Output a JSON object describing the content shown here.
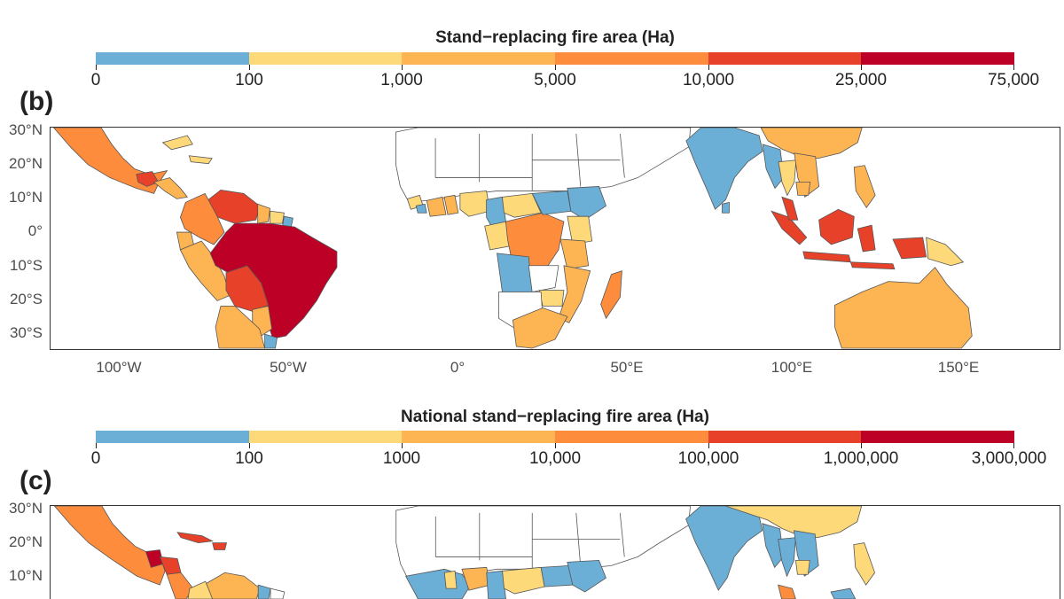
{
  "colors": [
    "#6baed6",
    "#fdd97a",
    "#fdb452",
    "#fd8d3c",
    "#e8412a",
    "#bd0026"
  ],
  "panel_b": {
    "label": "(b)",
    "legend_title": "Stand−replacing fire area (Ha)",
    "ticks": [
      "0",
      "100",
      "1,000",
      "5,000",
      "10,000",
      "25,000",
      "75,000"
    ],
    "lat_labels": [
      "30°N",
      "20°N",
      "10°N",
      "0°",
      "10°S",
      "20°S",
      "30°S"
    ],
    "lon_labels": [
      "100°W",
      "50°W",
      "0°",
      "50°E",
      "100°E",
      "150°E"
    ]
  },
  "panel_c": {
    "label": "(c)",
    "legend_title": "National stand−replacing fire area (Ha)",
    "ticks": [
      "0",
      "100",
      "1000",
      "10,000",
      "100,000",
      "1,000,000",
      "3,000,000"
    ],
    "lat_labels": [
      "30°N",
      "20°N",
      "10°N"
    ]
  }
}
